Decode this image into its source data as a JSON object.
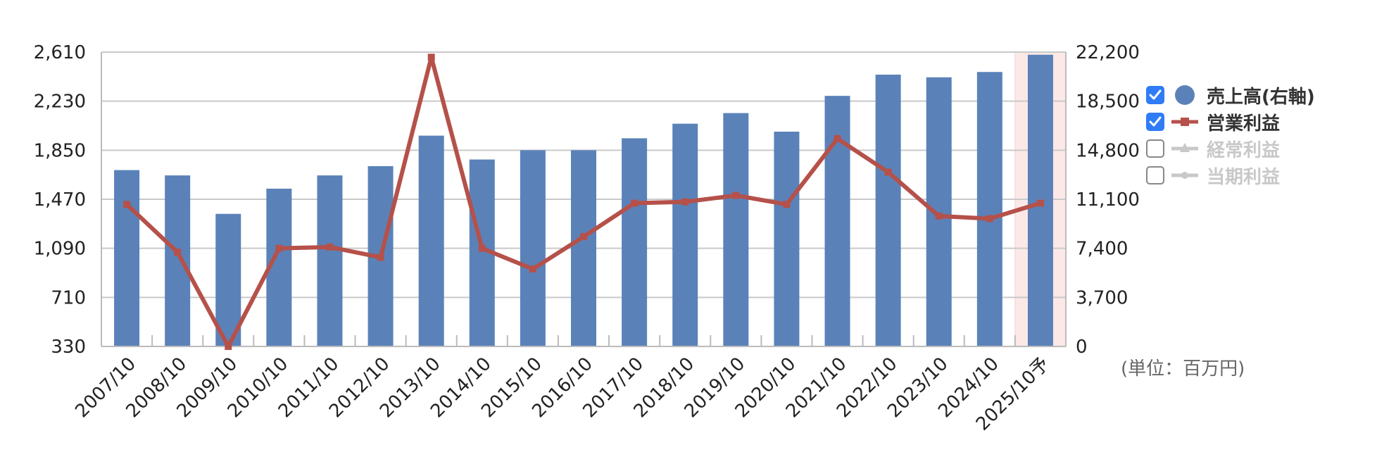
{
  "chart_data": {
    "type": "bar+line",
    "categories": [
      "2007/10",
      "2008/10",
      "2009/10",
      "2010/10",
      "2011/10",
      "2012/10",
      "2013/10",
      "2014/10",
      "2015/10",
      "2016/10",
      "2017/10",
      "2018/10",
      "2019/10",
      "2020/10",
      "2021/10",
      "2022/10",
      "2023/10",
      "2024/10",
      "2025/10予"
    ],
    "series": [
      {
        "name": "売上高(右軸)",
        "type": "bar",
        "axis": "right",
        "color": "#5a82b9",
        "values": [
          13300,
          12900,
          10000,
          11900,
          12900,
          13600,
          15900,
          14100,
          14800,
          14800,
          15700,
          16800,
          17600,
          16200,
          18900,
          20500,
          20300,
          20700,
          22000
        ]
      },
      {
        "name": "営業利益",
        "type": "line",
        "axis": "left",
        "color": "#b5514a",
        "values": [
          1430,
          1060,
          330,
          1090,
          1100,
          1020,
          2570,
          1090,
          930,
          1180,
          1440,
          1450,
          1500,
          1430,
          1940,
          1680,
          1340,
          1320,
          1440
        ]
      }
    ],
    "left_axis": {
      "min": 330,
      "max": 2610,
      "ticks": [
        "330",
        "710",
        "1,090",
        "1,470",
        "1,850",
        "2,230",
        "2,610"
      ]
    },
    "right_axis": {
      "min": 0,
      "max": 22200,
      "ticks": [
        "0",
        "3,700",
        "7,400",
        "11,100",
        "14,800",
        "18,500",
        "22,200"
      ]
    },
    "grid": true,
    "forecast_highlight_color": "#fde8e8",
    "unit_label": "(単位：百万円)"
  },
  "legend": {
    "items": [
      {
        "label": "売上高(右軸)",
        "checked": true,
        "symbol": "circle",
        "color": "#5a82b9"
      },
      {
        "label": "営業利益",
        "checked": true,
        "symbol": "line-square",
        "color": "#b5514a"
      },
      {
        "label": "経常利益",
        "checked": false,
        "symbol": "line-triangle",
        "color": "#c8c8c8"
      },
      {
        "label": "当期利益",
        "checked": false,
        "symbol": "line-circle",
        "color": "#c8c8c8"
      }
    ]
  }
}
